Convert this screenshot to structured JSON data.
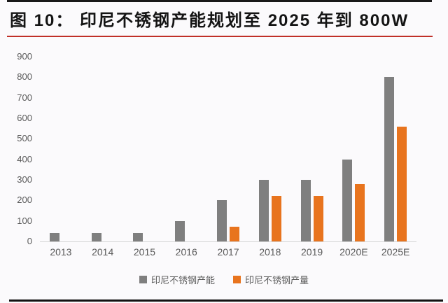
{
  "figure": {
    "label_and_title": "图 10：  印尼不锈钢产能规划至 2025 年到 800W"
  },
  "chart_data": {
    "type": "bar",
    "title": "印尼不锈钢产能规划至 2025 年到 800W",
    "categories": [
      "2013",
      "2014",
      "2015",
      "2016",
      "2017",
      "2018",
      "2019",
      "2020E",
      "2025E"
    ],
    "series": [
      {
        "name": "印尼不锈钢产能",
        "color": "#7f7f7f",
        "values": [
          40,
          40,
          40,
          100,
          200,
          300,
          300,
          400,
          800
        ]
      },
      {
        "name": "印尼不锈钢产量",
        "color": "#e8741e",
        "values": [
          0,
          0,
          0,
          0,
          70,
          220,
          220,
          280,
          560
        ]
      }
    ],
    "xlabel": "",
    "ylabel": "",
    "ylim": [
      0,
      900
    ],
    "ytick_step": 100,
    "y_tick_labels": [
      "900",
      "800",
      "700",
      "600",
      "500",
      "400",
      "300",
      "200",
      "100",
      "0"
    ],
    "grid": false,
    "legend_position": "bottom",
    "axis_line_color": "#d6d6d6",
    "tick_label_color": "#595959",
    "background": "#fbfafc"
  },
  "decorations": {
    "accent_red": "#c03028",
    "rule_black": "#191919"
  }
}
